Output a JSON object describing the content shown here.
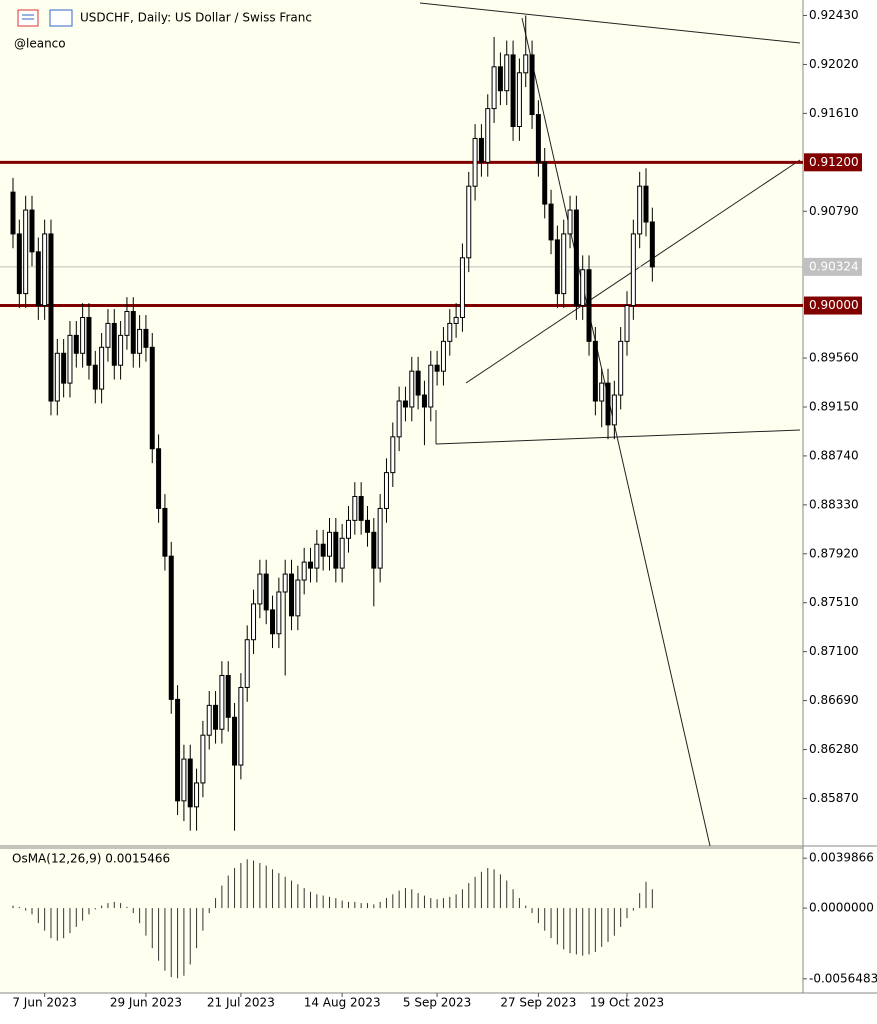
{
  "chart_data": {
    "type": "candlestick",
    "title": "USDCHF, Daily:  US Dollar / Swiss Franc",
    "subtitle": "@leanco",
    "categories": [
      null,
      null,
      null,
      null,
      null,
      "7 Jun 2023",
      null,
      null,
      null,
      null,
      null,
      null,
      null,
      null,
      null,
      null,
      null,
      null,
      null,
      null,
      null,
      "29 Jun 2023",
      null,
      null,
      null,
      null,
      null,
      null,
      null,
      null,
      null,
      null,
      null,
      null,
      null,
      null,
      "21 Jul 2023",
      null,
      null,
      null,
      null,
      null,
      null,
      null,
      null,
      null,
      null,
      null,
      null,
      null,
      null,
      null,
      "14 Aug 2023",
      null,
      null,
      null,
      null,
      null,
      null,
      null,
      null,
      null,
      null,
      null,
      null,
      null,
      null,
      "5 Sep 2023",
      null,
      null,
      null,
      null,
      null,
      null,
      null,
      null,
      null,
      null,
      null,
      null,
      null,
      null,
      null,
      "27 Sep 2023",
      null,
      null,
      null,
      null,
      null,
      null,
      null,
      null,
      null,
      null,
      null,
      null,
      null,
      "19 Oct 2023",
      null,
      null,
      null,
      null
    ],
    "candles": [
      [
        0.9095,
        0.9107,
        0.9048,
        0.906
      ],
      [
        0.906,
        0.9072,
        0.8998,
        0.901
      ],
      [
        0.901,
        0.9092,
        0.8998,
        0.908
      ],
      [
        0.908,
        0.9092,
        0.9033,
        0.9045
      ],
      [
        0.9045,
        0.9057,
        0.8988,
        0.9
      ],
      [
        0.9,
        0.9072,
        0.8988,
        0.906
      ],
      [
        0.906,
        0.9072,
        0.8908,
        0.892
      ],
      [
        0.892,
        0.8972,
        0.8908,
        0.896
      ],
      [
        0.896,
        0.8972,
        0.8923,
        0.8935
      ],
      [
        0.8935,
        0.8987,
        0.8923,
        0.8975
      ],
      [
        0.8975,
        0.8987,
        0.8948,
        0.896
      ],
      [
        0.896,
        0.9002,
        0.8948,
        0.899
      ],
      [
        0.899,
        0.9002,
        0.8938,
        0.895
      ],
      [
        0.895,
        0.8962,
        0.8918,
        0.893
      ],
      [
        0.893,
        0.8977,
        0.8918,
        0.8965
      ],
      [
        0.8965,
        0.8997,
        0.8953,
        0.8985
      ],
      [
        0.8985,
        0.8997,
        0.8938,
        0.895
      ],
      [
        0.895,
        0.8987,
        0.8938,
        0.8975
      ],
      [
        0.8975,
        0.9007,
        0.8963,
        0.8995
      ],
      [
        0.8995,
        0.9007,
        0.8948,
        0.896
      ],
      [
        0.896,
        0.8992,
        0.8948,
        0.898
      ],
      [
        0.898,
        0.8992,
        0.8953,
        0.8965
      ],
      [
        0.8965,
        0.8977,
        0.8868,
        0.888
      ],
      [
        0.888,
        0.8892,
        0.8818,
        0.883
      ],
      [
        0.883,
        0.8842,
        0.8778,
        0.879
      ],
      [
        0.879,
        0.8802,
        0.8658,
        0.867
      ],
      [
        0.867,
        0.8682,
        0.8573,
        0.8585
      ],
      [
        0.8585,
        0.8632,
        0.8568,
        0.862
      ],
      [
        0.862,
        0.8632,
        0.856,
        0.858
      ],
      [
        0.858,
        0.8612,
        0.856,
        0.86
      ],
      [
        0.86,
        0.8652,
        0.8588,
        0.864
      ],
      [
        0.864,
        0.8677,
        0.8628,
        0.8665
      ],
      [
        0.8665,
        0.8677,
        0.8633,
        0.8645
      ],
      [
        0.8645,
        0.8702,
        0.8633,
        0.869
      ],
      [
        0.869,
        0.8702,
        0.8643,
        0.8655
      ],
      [
        0.8655,
        0.8667,
        0.856,
        0.8615
      ],
      [
        0.8615,
        0.8692,
        0.8603,
        0.868
      ],
      [
        0.868,
        0.8732,
        0.8668,
        0.872
      ],
      [
        0.872,
        0.8762,
        0.8708,
        0.875
      ],
      [
        0.875,
        0.8787,
        0.8738,
        0.8775
      ],
      [
        0.8775,
        0.8787,
        0.8733,
        0.8745
      ],
      [
        0.8745,
        0.8757,
        0.8713,
        0.8725
      ],
      [
        0.8725,
        0.8772,
        0.8713,
        0.876
      ],
      [
        0.876,
        0.8787,
        0.869,
        0.8775
      ],
      [
        0.8775,
        0.8787,
        0.8728,
        0.874
      ],
      [
        0.874,
        0.8782,
        0.8728,
        0.877
      ],
      [
        0.877,
        0.8797,
        0.8758,
        0.8785
      ],
      [
        0.8785,
        0.8797,
        0.8768,
        0.878
      ],
      [
        0.878,
        0.8812,
        0.8768,
        0.88
      ],
      [
        0.88,
        0.8812,
        0.8778,
        0.879
      ],
      [
        0.879,
        0.8822,
        0.8778,
        0.881
      ],
      [
        0.881,
        0.8822,
        0.8768,
        0.878
      ],
      [
        0.878,
        0.8817,
        0.8768,
        0.8805
      ],
      [
        0.8805,
        0.8832,
        0.8793,
        0.882
      ],
      [
        0.882,
        0.8852,
        0.8808,
        0.884
      ],
      [
        0.884,
        0.8852,
        0.8808,
        0.882
      ],
      [
        0.882,
        0.8832,
        0.8798,
        0.881
      ],
      [
        0.881,
        0.8822,
        0.8748,
        0.878
      ],
      [
        0.878,
        0.8842,
        0.8768,
        0.883
      ],
      [
        0.883,
        0.8872,
        0.8818,
        0.886
      ],
      [
        0.886,
        0.8902,
        0.8848,
        0.889
      ],
      [
        0.889,
        0.8932,
        0.8878,
        0.892
      ],
      [
        0.892,
        0.8932,
        0.8903,
        0.8915
      ],
      [
        0.8915,
        0.8957,
        0.8903,
        0.8945
      ],
      [
        0.8945,
        0.8957,
        0.8913,
        0.8925
      ],
      [
        0.8925,
        0.8937,
        0.8883,
        0.8915
      ],
      [
        0.8915,
        0.8962,
        0.8903,
        0.895
      ],
      [
        0.895,
        0.8962,
        0.8933,
        0.8945
      ],
      [
        0.8945,
        0.8982,
        0.8933,
        0.897
      ],
      [
        0.897,
        0.8997,
        0.8958,
        0.8985
      ],
      [
        0.8985,
        0.9002,
        0.8973,
        0.899
      ],
      [
        0.899,
        0.9052,
        0.8978,
        0.904
      ],
      [
        0.904,
        0.9112,
        0.9028,
        0.91
      ],
      [
        0.91,
        0.9152,
        0.9088,
        0.914
      ],
      [
        0.914,
        0.9152,
        0.9108,
        0.912
      ],
      [
        0.912,
        0.9177,
        0.9108,
        0.9165
      ],
      [
        0.9165,
        0.9225,
        0.9153,
        0.92
      ],
      [
        0.92,
        0.9212,
        0.9168,
        0.918
      ],
      [
        0.918,
        0.9222,
        0.9168,
        0.921
      ],
      [
        0.921,
        0.9222,
        0.9138,
        0.915
      ],
      [
        0.915,
        0.9207,
        0.9138,
        0.9195
      ],
      [
        0.9195,
        0.9243,
        0.9183,
        0.921
      ],
      [
        0.921,
        0.9222,
        0.9148,
        0.916
      ],
      [
        0.916,
        0.9172,
        0.9108,
        0.912
      ],
      [
        0.912,
        0.9132,
        0.9073,
        0.9085
      ],
      [
        0.9085,
        0.9097,
        0.9043,
        0.9055
      ],
      [
        0.9055,
        0.9067,
        0.8998,
        0.901
      ],
      [
        0.901,
        0.9072,
        0.8998,
        0.906
      ],
      [
        0.906,
        0.9092,
        0.9048,
        0.908
      ],
      [
        0.908,
        0.9092,
        0.8988,
        0.9
      ],
      [
        0.9,
        0.9042,
        0.8988,
        0.903
      ],
      [
        0.903,
        0.9042,
        0.8958,
        0.897
      ],
      [
        0.897,
        0.8982,
        0.8908,
        0.892
      ],
      [
        0.892,
        0.8947,
        0.8898,
        0.8935
      ],
      [
        0.8935,
        0.8947,
        0.8888,
        0.89
      ],
      [
        0.89,
        0.8937,
        0.8888,
        0.8925
      ],
      [
        0.8925,
        0.8982,
        0.8913,
        0.897
      ],
      [
        0.897,
        0.9012,
        0.8958,
        0.9
      ],
      [
        0.9,
        0.9072,
        0.8988,
        0.906
      ],
      [
        0.906,
        0.9112,
        0.9048,
        0.91
      ],
      [
        0.91,
        0.9115,
        0.9058,
        0.907
      ],
      [
        0.907,
        0.9082,
        0.902,
        0.90324
      ]
    ],
    "ylim": [
      0.8548,
      0.9256
    ],
    "yticks": [
      {
        "value": 0.9243,
        "label": "0.92430"
      },
      {
        "value": 0.9202,
        "label": "0.92020"
      },
      {
        "value": 0.9161,
        "label": "0.91610"
      },
      {
        "value": 0.9079,
        "label": "0.90790"
      },
      {
        "value": 0.8956,
        "label": "0.89560"
      },
      {
        "value": 0.8915,
        "label": "0.89150"
      },
      {
        "value": 0.8874,
        "label": "0.88740"
      },
      {
        "value": 0.8833,
        "label": "0.88330"
      },
      {
        "value": 0.8792,
        "label": "0.87920"
      },
      {
        "value": 0.8751,
        "label": "0.87510"
      },
      {
        "value": 0.871,
        "label": "0.87100"
      },
      {
        "value": 0.8669,
        "label": "0.86690"
      },
      {
        "value": 0.8628,
        "label": "0.86280"
      },
      {
        "value": 0.8587,
        "label": "0.85870"
      }
    ],
    "levels": [
      {
        "value": 0.912,
        "label": "0.91200"
      },
      {
        "value": 0.9,
        "label": "0.90000"
      }
    ],
    "level_color": "#800000",
    "current_price": {
      "value": 0.90324,
      "label": "0.90324"
    },
    "indicator": {
      "title": "OsMA(12,26,9) 0.0015466",
      "values": [
        0.0002,
        0.0001,
        -0.0002,
        -0.0005,
        -0.0012,
        -0.0018,
        -0.0024,
        -0.0026,
        -0.0024,
        -0.002,
        -0.0015,
        -0.001,
        -0.0005,
        -0.0001,
        0.0002,
        0.0004,
        0.0005,
        0.0004,
        0.0001,
        -0.0004,
        -0.0012,
        -0.0022,
        -0.0032,
        -0.0042,
        -0.005,
        -0.0055,
        -0.0056,
        -0.0054,
        -0.0045,
        -0.0032,
        -0.0018,
        -0.0004,
        0.0008,
        0.0018,
        0.0026,
        0.0032,
        0.0036,
        0.0039,
        0.0038,
        0.0036,
        0.0034,
        0.0031,
        0.0028,
        0.0025,
        0.0022,
        0.0019,
        0.0016,
        0.0013,
        0.0011,
        0.001,
        0.0009,
        0.0008,
        0.0006,
        0.0005,
        0.0005,
        0.0004,
        0.0004,
        0.0003,
        0.0005,
        0.0008,
        0.0011,
        0.0014,
        0.0016,
        0.0015,
        0.0012,
        0.001,
        0.0008,
        0.0007,
        0.0008,
        0.0009,
        0.0011,
        0.0015,
        0.002,
        0.0025,
        0.0029,
        0.0032,
        0.0031,
        0.0027,
        0.0022,
        0.0015,
        0.0008,
        0.0002,
        -0.0004,
        -0.0012,
        -0.0018,
        -0.0024,
        -0.0029,
        -0.0033,
        -0.0036,
        -0.0037,
        -0.0038,
        -0.0037,
        -0.0035,
        -0.0031,
        -0.0027,
        -0.0022,
        -0.0015,
        -0.0008,
        -0.0002,
        0.0012,
        0.0021,
        0.0015
      ],
      "ylim": [
        -0.0067,
        0.0048
      ],
      "yticks": [
        {
          "value": 0.0039866,
          "label": "0.0039866"
        },
        {
          "value": 0,
          "label": "0.0000000"
        },
        {
          "value": -0.0056483,
          "label": "-0.0056483"
        }
      ]
    }
  }
}
